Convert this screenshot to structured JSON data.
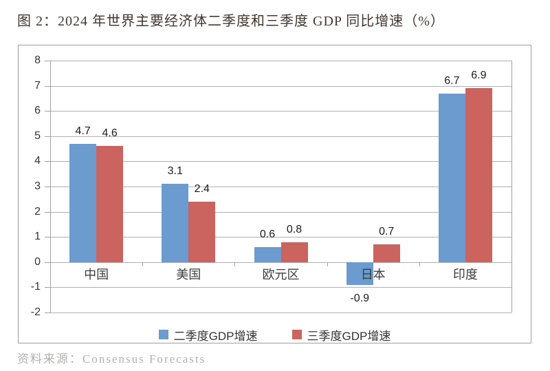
{
  "title": "图 2：2024 年世界主要经济体二季度和三季度 GDP 同比增速（%）",
  "source": "资料来源：Consensus Forecasts",
  "colors": {
    "series_q2": "#6b9bcf",
    "series_q3": "#cb635f",
    "gridline": "#b0b0b0",
    "axis": "#a0a0a0",
    "chart_border": "#9e9e9e",
    "title_text": "#42372f",
    "source_text": "#b3b0ad",
    "value_label": "#1a1a1a"
  },
  "chart_data": {
    "type": "bar",
    "title": "图 2：2024 年世界主要经济体二季度和三季度 GDP 同比增速（%）",
    "categories": [
      "中国",
      "美国",
      "欧元区",
      "日本",
      "印度"
    ],
    "series": [
      {
        "name": "二季度GDP增速",
        "color_key": "series_q2",
        "values": [
          4.7,
          3.1,
          0.6,
          -0.9,
          6.7
        ]
      },
      {
        "name": "三季度GDP增速",
        "color_key": "series_q3",
        "values": [
          4.6,
          2.4,
          0.8,
          0.7,
          6.9
        ]
      }
    ],
    "data_labels": [
      "4.7",
      "3.1",
      "0.6",
      "-0.9",
      "6.7",
      "4.6",
      "2.4",
      "0.8",
      "0.7",
      "6.9"
    ],
    "ylim": [
      -2,
      8
    ],
    "yticks": [
      -2,
      -1,
      0,
      1,
      2,
      3,
      4,
      5,
      6,
      7,
      8
    ],
    "xlabel": "",
    "ylabel": "",
    "grid": true,
    "legend_position": "bottom",
    "source": "资料来源：Consensus Forecasts"
  }
}
